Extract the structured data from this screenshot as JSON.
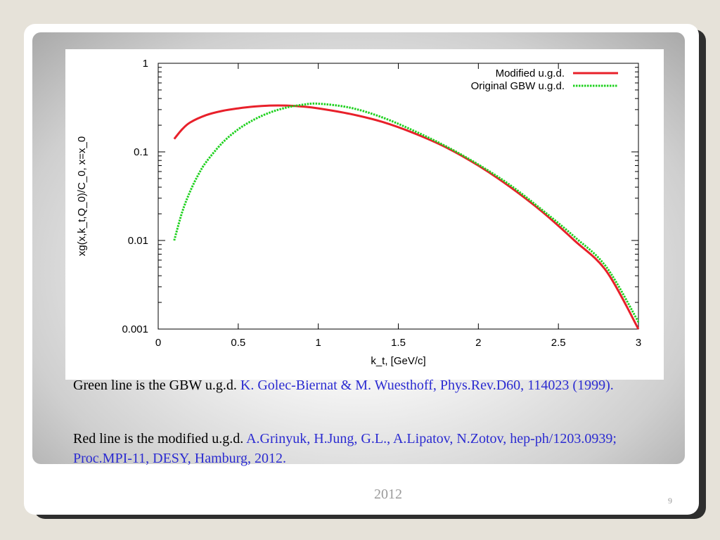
{
  "chart_data": {
    "type": "line",
    "xlabel": "k_t, [GeV/c]",
    "ylabel": "xg(x,k_t,Q_0)/C_0, x=x_0",
    "xlim": [
      0,
      3
    ],
    "ylim": [
      0.001,
      1
    ],
    "yscale": "log",
    "grid": false,
    "legend_position": "top-right",
    "x_ticks": [
      "0",
      "0.5",
      "1",
      "1.5",
      "2",
      "2.5",
      "3"
    ],
    "y_ticks": [
      "0.001",
      "0.01",
      "0.1",
      "1"
    ],
    "series": [
      {
        "name": "Modified u.g.d.",
        "color": "#e8202a",
        "style": "solid",
        "x": [
          0.1,
          0.15,
          0.2,
          0.3,
          0.4,
          0.5,
          0.6,
          0.7,
          0.8,
          0.9,
          1.0,
          1.2,
          1.4,
          1.6,
          1.8,
          2.0,
          2.2,
          2.4,
          2.6,
          2.8,
          3.0
        ],
        "y": [
          0.14,
          0.18,
          0.215,
          0.26,
          0.29,
          0.31,
          0.325,
          0.333,
          0.333,
          0.325,
          0.31,
          0.268,
          0.218,
          0.162,
          0.112,
          0.07,
          0.04,
          0.021,
          0.01,
          0.0045,
          0.001
        ]
      },
      {
        "name": "Original GBW u.g.d.",
        "color": "#1fd11f",
        "style": "dotted",
        "x": [
          0.1,
          0.15,
          0.2,
          0.25,
          0.3,
          0.4,
          0.5,
          0.6,
          0.7,
          0.8,
          0.9,
          1.0,
          1.2,
          1.4,
          1.6,
          1.8,
          2.0,
          2.2,
          2.4,
          2.6,
          2.8,
          3.0
        ],
        "y": [
          0.01,
          0.021,
          0.036,
          0.055,
          0.077,
          0.126,
          0.18,
          0.232,
          0.279,
          0.316,
          0.34,
          0.35,
          0.315,
          0.245,
          0.172,
          0.115,
          0.072,
          0.042,
          0.022,
          0.011,
          0.005,
          0.0012
        ]
      }
    ]
  },
  "captions": {
    "green_text": "Green line is the GBW u.g.d. ",
    "green_ref": "K. Golec-Biernat & M. Wuesthoff, Phys.Rev.D60, 114023 (1999).",
    "red_text": "Red line is the modified u.g.d. ",
    "red_ref": "A.Grinyuk, H.Jung, G.L., A.Lipatov, N.Zotov, hep-ph/1203.0939; Proc.MPI-11, DESY, Hamburg, 2012."
  },
  "footer": {
    "year": "2012",
    "page_number": "9"
  }
}
